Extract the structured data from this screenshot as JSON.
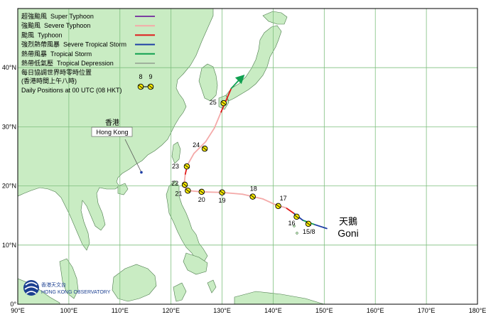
{
  "map": {
    "lon_range": [
      90,
      180
    ],
    "lat_range": [
      0,
      50
    ],
    "x_ticks": [
      {
        "lon": 90,
        "label": "90°E"
      },
      {
        "lon": 100,
        "label": "100°E"
      },
      {
        "lon": 110,
        "label": "110°E"
      },
      {
        "lon": 120,
        "label": "120°E"
      },
      {
        "lon": 130,
        "label": "130°E"
      },
      {
        "lon": 140,
        "label": "140°E"
      },
      {
        "lon": 150,
        "label": "150°E"
      },
      {
        "lon": 160,
        "label": "160°E"
      },
      {
        "lon": 170,
        "label": "170°E"
      },
      {
        "lon": 180,
        "label": "180°E"
      }
    ],
    "y_ticks": [
      {
        "lat": 0,
        "label": "0°"
      },
      {
        "lat": 10,
        "label": "10°N"
      },
      {
        "lat": 20,
        "label": "20°N"
      },
      {
        "lat": 30,
        "label": "30°N"
      },
      {
        "lat": 40,
        "label": "40°N"
      }
    ],
    "grid": true,
    "colors": {
      "ocean": "#ffffff",
      "land": "#c9ecc3",
      "coast": "#4a7a4a",
      "grid": "#7fbf7f",
      "frame": "#000000"
    }
  },
  "legend": {
    "categories": [
      {
        "zh": "超強颱風",
        "en": "Super Typhoon",
        "color": "#7b3fa0"
      },
      {
        "zh": "強颱風",
        "en": "Severe Typhoon",
        "color": "#f4a9a8"
      },
      {
        "zh": "颱風",
        "en": "Typhoon",
        "color": "#e01a1a"
      },
      {
        "zh": "強烈熱帶風暴",
        "en": "Severe Tropical Storm",
        "color": "#1f3fa6"
      },
      {
        "zh": "熱帶風暴",
        "en": "Tropical Storm",
        "color": "#10a050"
      },
      {
        "zh": "熱帶低氣壓",
        "en": "Tropical Depression",
        "color": "#777777"
      }
    ],
    "note_zh_1": "每日協調世界時零時位置",
    "note_zh_2": "(香港時間上午八時)",
    "note_en": "Daily Positions at 00 UTC (08 HKT)",
    "sample_labels": [
      "8",
      "9"
    ]
  },
  "hong_kong": {
    "zh": "香港",
    "en": "Hong Kong",
    "lon": 114.2,
    "lat": 22.3
  },
  "storm": {
    "name_zh": "天鵝",
    "name_en": "Goni",
    "track": [
      {
        "lon": 150.5,
        "lat": 12.8,
        "cat": 3
      },
      {
        "lon": 148.0,
        "lat": 13.5,
        "cat": 3
      },
      {
        "lon": 145.8,
        "lat": 14.2,
        "cat": 4
      },
      {
        "lon": 144.0,
        "lat": 15.4,
        "cat": 3
      },
      {
        "lon": 142.5,
        "lat": 16.3,
        "cat": 2
      },
      {
        "lon": 140.5,
        "lat": 16.8,
        "cat": 1
      },
      {
        "lon": 138.0,
        "lat": 17.8,
        "cat": 1
      },
      {
        "lon": 134.0,
        "lat": 18.6,
        "cat": 1
      },
      {
        "lon": 130.0,
        "lat": 18.9,
        "cat": 1
      },
      {
        "lon": 126.0,
        "lat": 19.0,
        "cat": 1
      },
      {
        "lon": 123.5,
        "lat": 19.2,
        "cat": 1
      },
      {
        "lon": 122.7,
        "lat": 19.7,
        "cat": 1
      },
      {
        "lon": 122.6,
        "lat": 20.5,
        "cat": 1
      },
      {
        "lon": 122.8,
        "lat": 22.0,
        "cat": 1
      },
      {
        "lon": 123.2,
        "lat": 23.5,
        "cat": 2
      },
      {
        "lon": 124.5,
        "lat": 25.5,
        "cat": 1
      },
      {
        "lon": 126.8,
        "lat": 27.5,
        "cat": 1
      },
      {
        "lon": 128.5,
        "lat": 29.8,
        "cat": 1
      },
      {
        "lon": 129.8,
        "lat": 32.5,
        "cat": 1
      },
      {
        "lon": 130.8,
        "lat": 34.5,
        "cat": 2
      },
      {
        "lon": 131.8,
        "lat": 36.5,
        "cat": 2
      },
      {
        "lon": 133.2,
        "lat": 37.8,
        "cat": 4
      }
    ],
    "daily_positions": [
      {
        "label": "15/8",
        "lon": 146.9,
        "lat": 13.6,
        "label_dx": -8,
        "label_dy": 14
      },
      {
        "label": "16",
        "lon": 144.6,
        "lat": 14.8,
        "label_dx": -12,
        "label_dy": 12
      },
      {
        "label": "17",
        "lon": 141.0,
        "lat": 16.6,
        "label_dx": 2,
        "label_dy": -8
      },
      {
        "label": "18",
        "lon": 136.0,
        "lat": 18.2,
        "label_dx": -4,
        "label_dy": -8
      },
      {
        "label": "19",
        "lon": 130.0,
        "lat": 18.9,
        "label_dx": -5,
        "label_dy": 14
      },
      {
        "label": "20",
        "lon": 126.0,
        "lat": 19.0,
        "label_dx": -5,
        "label_dy": 14
      },
      {
        "label": "21",
        "lon": 123.3,
        "lat": 19.2,
        "label_dx": -18,
        "label_dy": 7
      },
      {
        "label": "22",
        "lon": 122.7,
        "lat": 20.2,
        "label_dx": -19,
        "label_dy": 1
      },
      {
        "label": "23",
        "lon": 123.1,
        "lat": 23.3,
        "label_dx": -21,
        "label_dy": 3
      },
      {
        "label": "24",
        "lon": 126.6,
        "lat": 26.3,
        "label_dx": -17,
        "label_dy": -2
      },
      {
        "label": "25",
        "lon": 130.3,
        "lat": 34.0,
        "label_dx": -20,
        "label_dy": 2
      }
    ],
    "arrow_end": {
      "lon": 133.8,
      "lat": 38.3
    }
  },
  "logo": {
    "zh": "香港天文台",
    "en": "HONG KONG OBSERVATORY"
  }
}
